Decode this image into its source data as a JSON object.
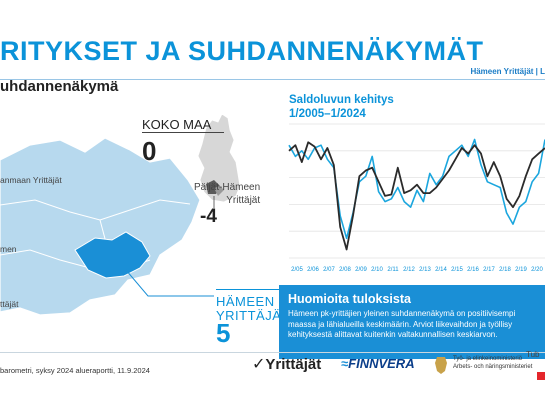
{
  "header": {
    "title": "RITYKSET JA SUHDANNENÄKYMÄT",
    "subtitle": "uhdannenäkymä",
    "top_right": "Hämeen Yrittäjät | L"
  },
  "map": {
    "koko_maa": {
      "label": "KOKO MAA",
      "value": "0"
    },
    "paijat_hame": {
      "label_line1": "Päijät-Hämeen",
      "label_line2": "Yrittäjät",
      "value": "-4"
    },
    "hameen_yrittajat": {
      "label_line1": "HÄMEEN",
      "label_line2": "YRITTÄJÄT",
      "value": "5"
    },
    "region_labels": [
      "anmaan Yrittäjät",
      "men",
      "ttäjät"
    ]
  },
  "chart_data": {
    "type": "line",
    "title_line1": "Saldoluvun kehitys",
    "title_line2": "1/2005–1/2024",
    "x_ticks": [
      "2/05",
      "2/06",
      "2/07",
      "2/08",
      "2/09",
      "2/10",
      "2/11",
      "2/12",
      "2/13",
      "2/14",
      "2/15",
      "2/16",
      "2/17",
      "2/18",
      "2/19",
      "2/20"
    ],
    "colors": {
      "series_a": "#2b2b2b",
      "series_b": "#1ba6de"
    },
    "grid": true,
    "series": [
      {
        "values": [
          26,
          30,
          18,
          32,
          29,
          20,
          28,
          16,
          -28,
          -44,
          -20,
          8,
          12,
          14,
          4,
          -6,
          -5,
          14,
          -4,
          -2,
          2,
          -4,
          -4,
          0,
          6,
          12,
          20,
          28,
          24,
          30,
          24,
          8,
          18,
          8,
          -8,
          -14,
          -6,
          8,
          20,
          24,
          28
        ]
      },
      {
        "values": [
          30,
          22,
          26,
          20,
          28,
          30,
          20,
          14,
          -20,
          -36,
          -18,
          4,
          8,
          22,
          -3,
          -10,
          -8,
          0,
          -10,
          -14,
          -2,
          -10,
          10,
          2,
          8,
          22,
          26,
          30,
          22,
          34,
          16,
          4,
          2,
          0,
          -18,
          -26,
          -14,
          -10,
          4,
          10,
          34
        ]
      }
    ],
    "ylim": [
      -50,
      45
    ]
  },
  "notes": {
    "title": "Huomioita tuloksista",
    "line1": "Hämeen pk-yrittäjien yleinen suhdannenäkymä on positiivisempi",
    "line2": "maassa ja lähialueilla keskimäärin. Arviot liikevaihdon ja työllisy",
    "line3": "kehityksestä alittavat kuitenkin valtakunnallisen keskiarvon."
  },
  "footer": {
    "source": "barometri, syksy 2024 alueraportti, 11.9.2024",
    "logo_yrittajat": "Yrittäjät",
    "logo_finnvera": "FINNVERA",
    "logo_tem_line1": "Työ- ja elinkeinoministeriö",
    "logo_tem_line2": "Arbets- och näringsministeriet",
    "tub": "Tub"
  }
}
